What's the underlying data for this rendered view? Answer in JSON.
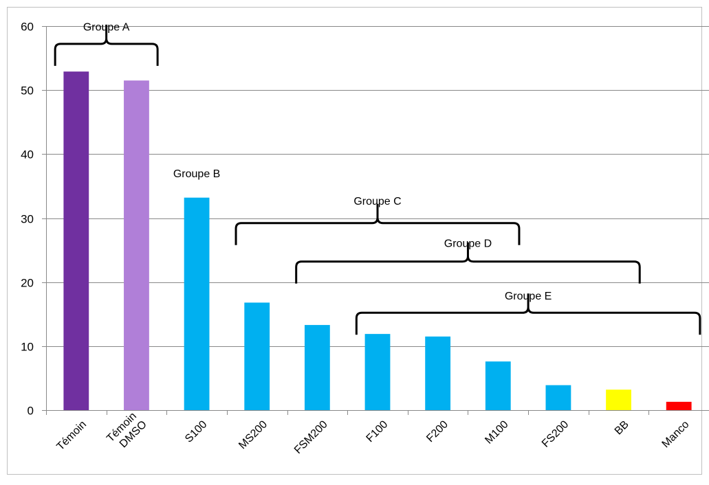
{
  "chart_data": {
    "type": "bar",
    "categories": [
      [
        "Témoin"
      ],
      [
        "Témoin",
        "DMSO"
      ],
      [
        "S100"
      ],
      [
        "MS200"
      ],
      [
        "FSM200"
      ],
      [
        "F100"
      ],
      [
        "F200"
      ],
      [
        "M100"
      ],
      [
        "FS200"
      ],
      [
        "BB"
      ],
      [
        "Manco"
      ]
    ],
    "values": [
      52.9,
      51.5,
      33.2,
      16.8,
      13.3,
      11.9,
      11.5,
      7.6,
      3.9,
      3.2,
      1.3
    ],
    "colors": [
      "#7030a0",
      "#b07fd8",
      "#00b0f0",
      "#00b0f0",
      "#00b0f0",
      "#00b0f0",
      "#00b0f0",
      "#00b0f0",
      "#00b0f0",
      "#ffff00",
      "#ff0000"
    ],
    "ylim": [
      0,
      60
    ],
    "yticks": [
      "0",
      "10",
      "20",
      "30",
      "40",
      "50",
      "60"
    ],
    "grid": true,
    "title": "",
    "xlabel": "",
    "ylabel": "",
    "annotations": [
      {
        "label": "Groupe A",
        "from_category": 0,
        "to_category": 1,
        "at_value": 55.5,
        "label_value": 59.3,
        "bracket": true
      },
      {
        "label": "Groupe B",
        "from_category": 2,
        "to_category": 2,
        "at_value": 35,
        "label_value": 36.4,
        "bracket": false
      },
      {
        "label": "Groupe C",
        "from_category": 3,
        "to_category": 7,
        "at_value": 27.5,
        "label_value": 32.1,
        "bracket": true
      },
      {
        "label": "Groupe D",
        "from_category": 4,
        "to_category": 9,
        "at_value": 21.5,
        "label_value": 25.5,
        "bracket": true
      },
      {
        "label": "Groupe E",
        "from_category": 5,
        "to_category": 10,
        "at_value": 13.5,
        "label_value": 17.3,
        "bracket": true
      }
    ]
  }
}
